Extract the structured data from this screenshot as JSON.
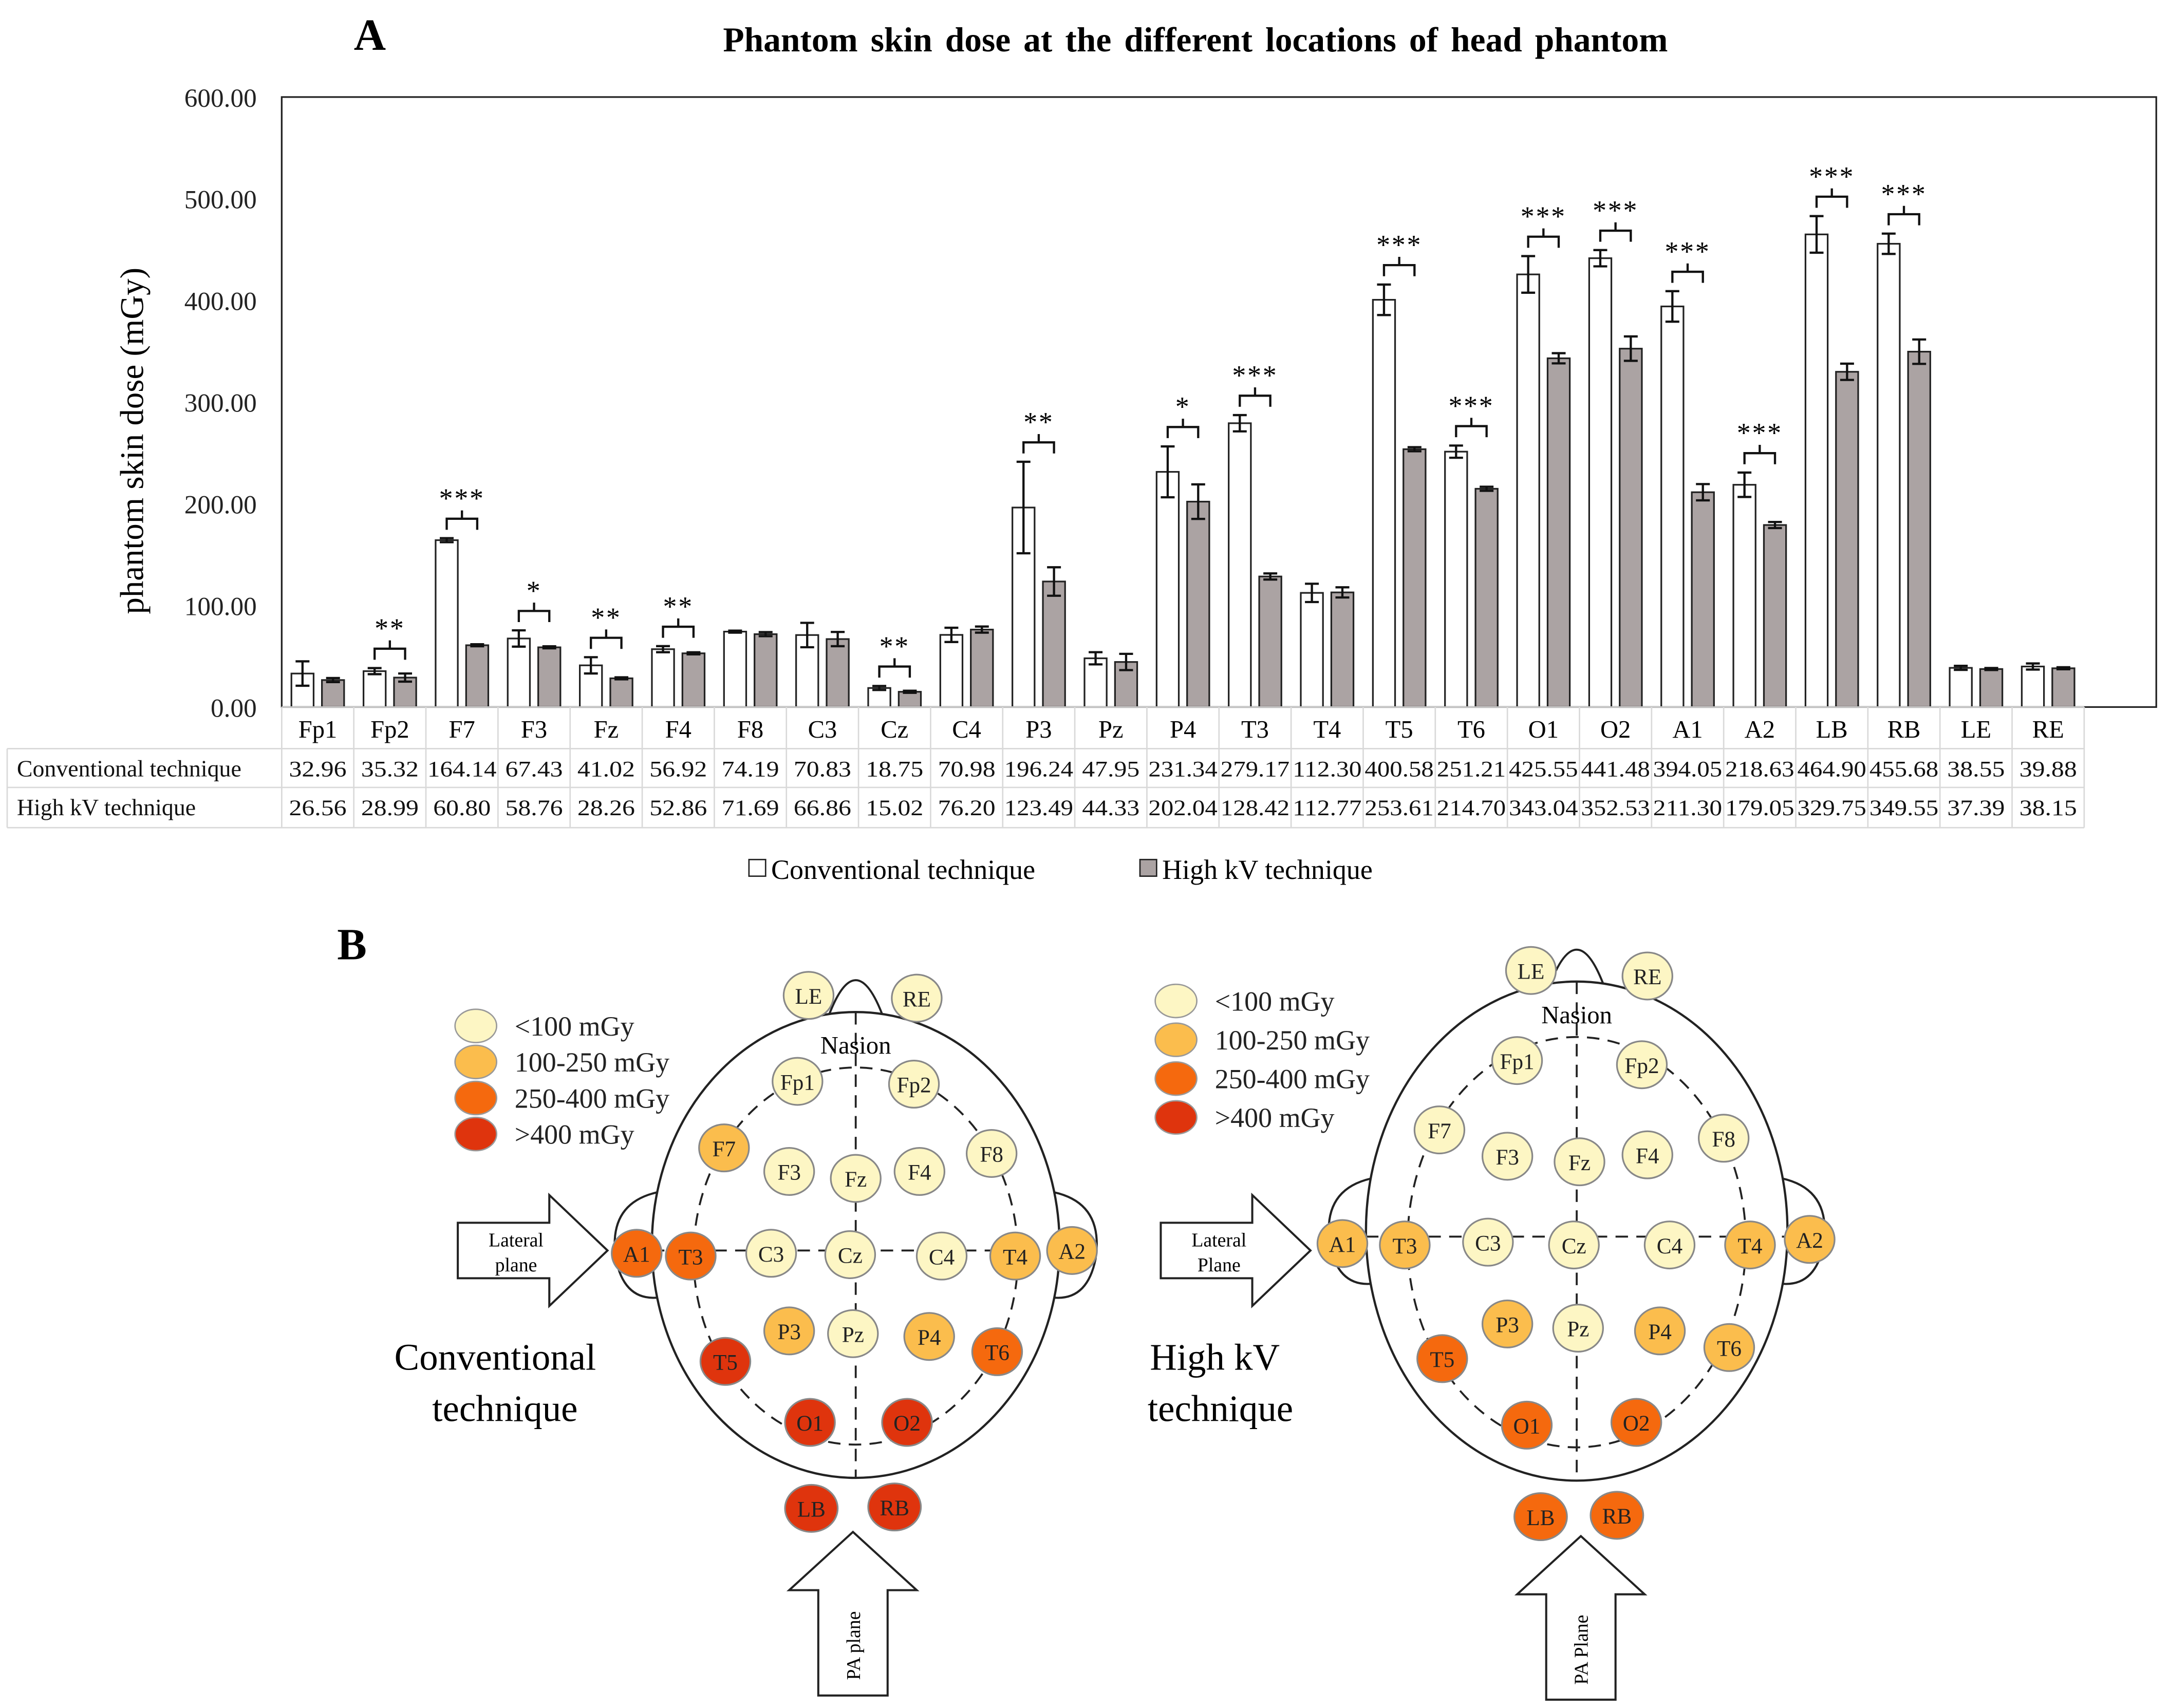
{
  "panel_a_label": "A",
  "panel_b_label": "B",
  "chart_data": {
    "type": "bar",
    "title": "Phantom skin dose at the different locations of head phantom",
    "xlabel": "",
    "ylabel": "phantom skin dose (mGy)",
    "ylim": [
      0,
      600
    ],
    "yticks": [
      "0.00",
      "100.00",
      "200.00",
      "300.00",
      "400.00",
      "500.00",
      "600.00"
    ],
    "grid": false,
    "legend_position": "bottom",
    "categories": [
      "Fp1",
      "Fp2",
      "F7",
      "F3",
      "Fz",
      "F4",
      "F8",
      "C3",
      "Cz",
      "C4",
      "P3",
      "Pz",
      "P4",
      "T3",
      "T4",
      "T5",
      "T6",
      "O1",
      "O2",
      "A1",
      "A2",
      "LB",
      "RB",
      "LE",
      "RE"
    ],
    "series": [
      {
        "name": "Conventional technique",
        "color": "#ffffff",
        "values": [
          32.96,
          35.32,
          164.14,
          67.43,
          41.02,
          56.92,
          74.19,
          70.83,
          18.75,
          70.98,
          196.24,
          47.95,
          231.34,
          279.17,
          112.3,
          400.58,
          251.21,
          425.55,
          441.48,
          394.05,
          218.63,
          464.9,
          455.68,
          38.55,
          39.88
        ],
        "values_text": [
          "32.96",
          "35.32",
          "164.14",
          "67.43",
          "41.02",
          "56.92",
          "74.19",
          "70.83",
          "18.75",
          "70.98",
          "196.24",
          "47.95",
          "231.34",
          "279.17",
          "112.30",
          "400.58",
          "251.21",
          "425.55",
          "441.48",
          "394.05",
          "218.63",
          "464.90",
          "455.68",
          "38.55",
          "39.88"
        ],
        "error": [
          12,
          3,
          2,
          8,
          8,
          3,
          1,
          12,
          2,
          7,
          45,
          6,
          25,
          8,
          9,
          15,
          6,
          18,
          8,
          15,
          12,
          18,
          10,
          2,
          3
        ]
      },
      {
        "name": "High kV technique",
        "color": "#aba3a3",
        "values": [
          26.56,
          28.99,
          60.8,
          58.76,
          28.26,
          52.86,
          71.69,
          66.86,
          15.02,
          76.2,
          123.49,
          44.33,
          202.04,
          128.42,
          112.77,
          253.61,
          214.7,
          343.04,
          352.53,
          211.3,
          179.05,
          329.75,
          349.55,
          37.39,
          38.15
        ],
        "values_text": [
          "26.56",
          "28.99",
          "60.80",
          "58.76",
          "28.26",
          "52.86",
          "71.69",
          "66.86",
          "15.02",
          "76.20",
          "123.49",
          "44.33",
          "202.04",
          "128.42",
          "112.77",
          "253.61",
          "214.70",
          "343.04",
          "352.53",
          "211.30",
          "179.05",
          "329.75",
          "349.55",
          "37.39",
          "38.15"
        ],
        "error": [
          2,
          4,
          1,
          1,
          1,
          1,
          2,
          7,
          1,
          3,
          14,
          8,
          17,
          3,
          5,
          2,
          2,
          5,
          12,
          8,
          3,
          8,
          12,
          1,
          1
        ]
      }
    ],
    "significance": [
      "",
      "**",
      "***",
      "*",
      "**",
      "**",
      "",
      "",
      "**",
      "",
      "**",
      "",
      "*",
      "***",
      "",
      "***",
      "***",
      "***",
      "***",
      "***",
      "***",
      "***",
      "***",
      "",
      ""
    ]
  },
  "diagram": {
    "legend": [
      {
        "label": "<100 mGy",
        "color": "#fdf6c4"
      },
      {
        "label": "100-250 mGy",
        "color": "#fbbd4d"
      },
      {
        "label": "250-400 mGy",
        "color": "#f5690e"
      },
      {
        "label": ">400 mGy",
        "color": "#df340d"
      }
    ],
    "nasion_label": "Nasion",
    "conventional": {
      "title_line1": "Conventional",
      "title_line2": "technique",
      "lateral_arrow_line1": "Lateral",
      "lateral_arrow_line2": "plane",
      "pa_arrow_label": "PA plane"
    },
    "high_kv": {
      "title_line1": "High kV",
      "title_line2": "technique",
      "lateral_arrow_line1": "Lateral",
      "lateral_arrow_line2": "Plane",
      "pa_arrow_label": "PA Plane"
    }
  }
}
